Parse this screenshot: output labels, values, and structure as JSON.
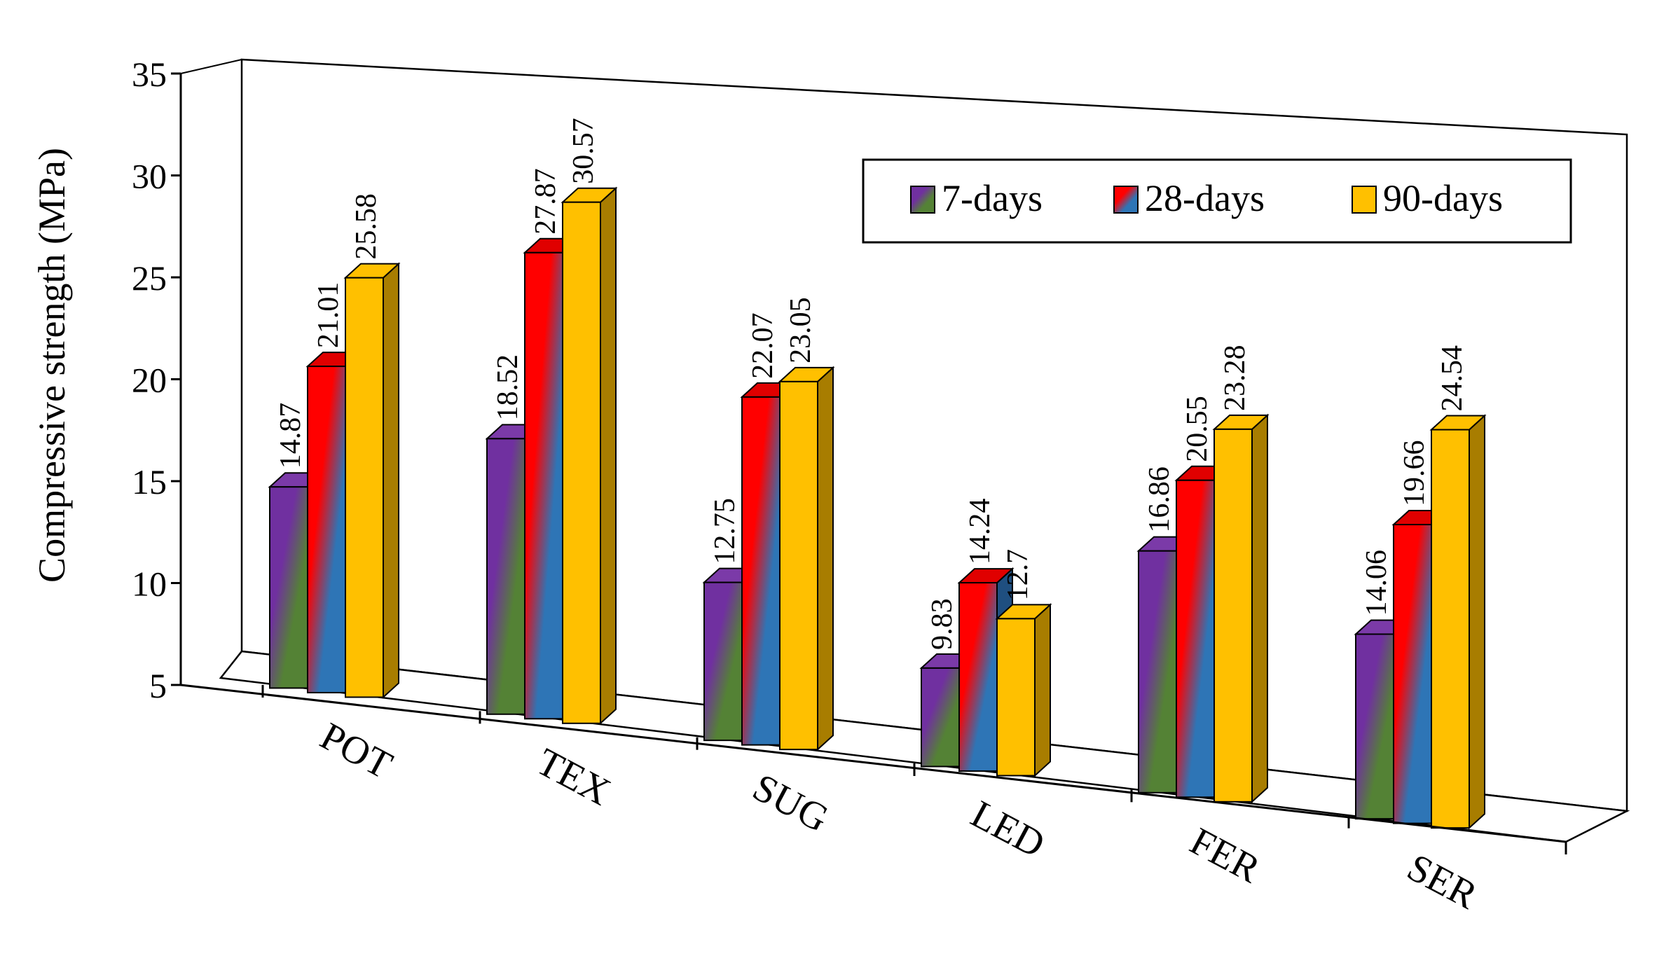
{
  "chart_data": {
    "type": "bar",
    "title": "",
    "xlabel": "",
    "ylabel": "Compressive strength (MPa)",
    "ylim": [
      5,
      35
    ],
    "yticks": [
      "5",
      "10",
      "15",
      "20",
      "25",
      "30",
      "35"
    ],
    "categories": [
      "POT",
      "TEX",
      "SUG",
      "LED",
      "FER",
      "SER"
    ],
    "series": [
      {
        "name": "7-days",
        "values": [
          14.87,
          18.52,
          12.75,
          9.83,
          16.86,
          14.06
        ],
        "labels": [
          "14.87",
          "18.52",
          "12.75",
          "9.83",
          "16.86",
          "14.06"
        ],
        "colors": [
          "#7030a0",
          "#548235"
        ]
      },
      {
        "name": "28-days",
        "values": [
          21.01,
          27.87,
          22.07,
          14.24,
          20.55,
          19.66
        ],
        "labels": [
          "21.01",
          "27.87",
          "22.07",
          "14.24",
          "20.55",
          "19.66"
        ],
        "colors": [
          "#ff0000",
          "#2e75b6"
        ]
      },
      {
        "name": "90-days",
        "values": [
          25.58,
          30.57,
          23.05,
          12.7,
          23.28,
          24.54
        ],
        "labels": [
          "25.58",
          "30.57",
          "23.05",
          "12.7",
          "23.28",
          "24.54"
        ],
        "colors": [
          "#ffc000",
          "#ffc000"
        ]
      }
    ],
    "legend": {
      "position": "top-right",
      "entries": [
        "7-days",
        "28-days",
        "90-days"
      ]
    },
    "style": "3d-clustered-column"
  }
}
